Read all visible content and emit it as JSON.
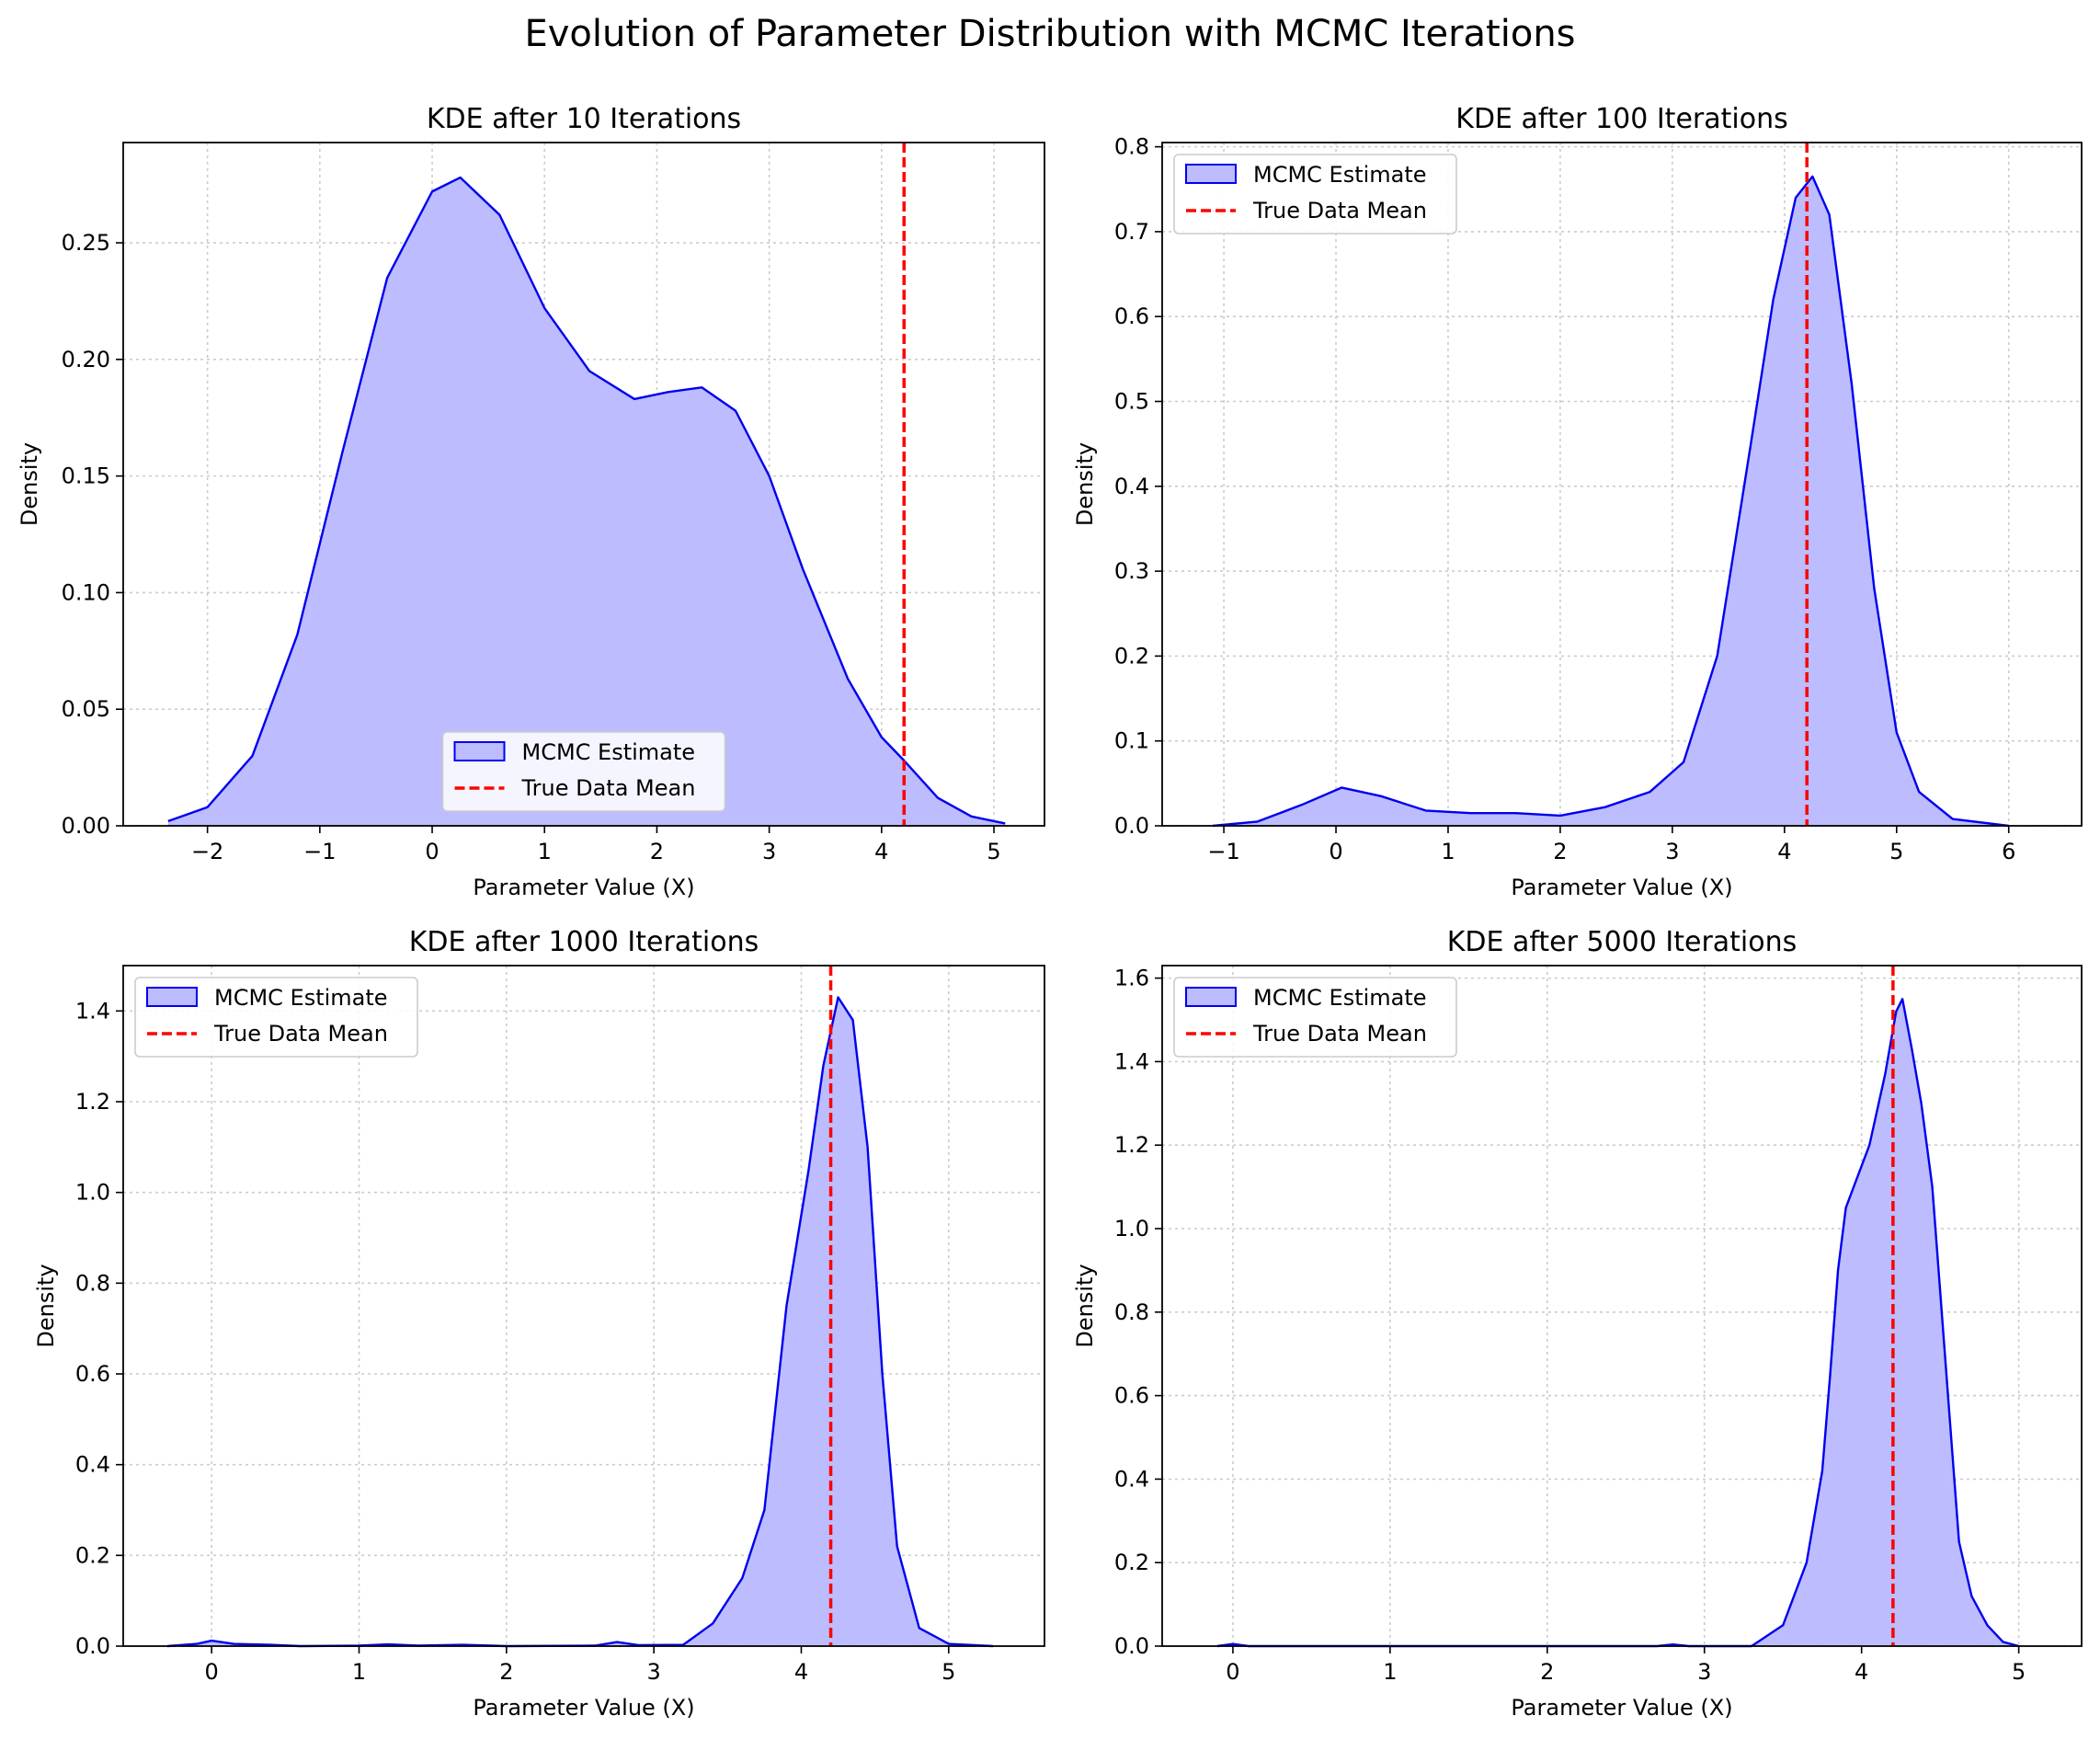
{
  "figure": {
    "title": "Evolution of Parameter Distribution with MCMC Iterations"
  },
  "colors": {
    "fill": "#bcbcff",
    "line": "#0000ee",
    "mean_line": "#ff0000",
    "grid": "#cccccc"
  },
  "chart_data": [
    {
      "type": "area",
      "title": "KDE after 10 Iterations",
      "xlabel": "Parameter Value (X)",
      "ylabel": "Density",
      "xlim": [
        -2.75,
        5.45
      ],
      "ylim": [
        0,
        0.293
      ],
      "xticks": [
        -2,
        -1,
        0,
        1,
        2,
        3,
        4,
        5
      ],
      "xtick_labels": [
        "−2",
        "−1",
        "0",
        "1",
        "2",
        "3",
        "4",
        "5"
      ],
      "yticks": [
        0,
        0.05,
        0.1,
        0.15,
        0.2,
        0.25
      ],
      "ytick_labels": [
        "0.00",
        "0.05",
        "0.10",
        "0.15",
        "0.20",
        "0.25"
      ],
      "grid": true,
      "legend": "lower center",
      "true_mean": 4.2,
      "series": [
        {
          "name": "MCMC Estimate",
          "x": [
            -2.35,
            -2.0,
            -1.6,
            -1.2,
            -0.8,
            -0.4,
            0.0,
            0.25,
            0.6,
            1.0,
            1.4,
            1.8,
            2.1,
            2.4,
            2.7,
            3.0,
            3.3,
            3.7,
            4.0,
            4.2,
            4.5,
            4.8,
            5.1
          ],
          "y": [
            0.002,
            0.008,
            0.03,
            0.082,
            0.16,
            0.235,
            0.272,
            0.278,
            0.262,
            0.222,
            0.195,
            0.183,
            0.186,
            0.188,
            0.178,
            0.15,
            0.11,
            0.063,
            0.038,
            0.028,
            0.012,
            0.004,
            0.001
          ]
        }
      ]
    },
    {
      "type": "area",
      "title": "KDE after 100 Iterations",
      "xlabel": "Parameter Value (X)",
      "ylabel": "Density",
      "xlim": [
        -1.55,
        6.65
      ],
      "ylim": [
        0,
        0.805
      ],
      "xticks": [
        -1,
        0,
        1,
        2,
        3,
        4,
        5,
        6
      ],
      "xtick_labels": [
        "−1",
        "0",
        "1",
        "2",
        "3",
        "4",
        "5",
        "6"
      ],
      "yticks": [
        0,
        0.1,
        0.2,
        0.3,
        0.4,
        0.5,
        0.6,
        0.7,
        0.8
      ],
      "ytick_labels": [
        "0.0",
        "0.1",
        "0.2",
        "0.3",
        "0.4",
        "0.5",
        "0.6",
        "0.7",
        "0.8"
      ],
      "grid": true,
      "legend": "upper left",
      "true_mean": 4.2,
      "series": [
        {
          "name": "MCMC Estimate",
          "x": [
            -1.1,
            -0.7,
            -0.3,
            0.05,
            0.4,
            0.8,
            1.2,
            1.6,
            2.0,
            2.4,
            2.8,
            3.1,
            3.4,
            3.7,
            3.9,
            4.1,
            4.25,
            4.4,
            4.6,
            4.8,
            5.0,
            5.2,
            5.5,
            6.0
          ],
          "y": [
            0.0,
            0.005,
            0.025,
            0.045,
            0.035,
            0.018,
            0.015,
            0.015,
            0.012,
            0.022,
            0.04,
            0.075,
            0.2,
            0.45,
            0.62,
            0.74,
            0.765,
            0.72,
            0.52,
            0.28,
            0.11,
            0.04,
            0.008,
            0.0
          ]
        }
      ]
    },
    {
      "type": "area",
      "title": "KDE after 1000 Iterations",
      "xlabel": "Parameter Value (X)",
      "ylabel": "Density",
      "xlim": [
        -0.6,
        5.65
      ],
      "ylim": [
        0,
        1.5
      ],
      "xticks": [
        0,
        1,
        2,
        3,
        4,
        5
      ],
      "xtick_labels": [
        "0",
        "1",
        "2",
        "3",
        "4",
        "5"
      ],
      "yticks": [
        0,
        0.2,
        0.4,
        0.6,
        0.8,
        1.0,
        1.2,
        1.4
      ],
      "ytick_labels": [
        "0.0",
        "0.2",
        "0.4",
        "0.6",
        "0.8",
        "1.0",
        "1.2",
        "1.4"
      ],
      "grid": true,
      "legend": "upper left",
      "true_mean": 4.2,
      "series": [
        {
          "name": "MCMC Estimate",
          "x": [
            -0.3,
            -0.1,
            0.0,
            0.15,
            0.4,
            0.6,
            1.0,
            1.2,
            1.4,
            1.7,
            2.0,
            2.6,
            2.75,
            2.9,
            3.2,
            3.4,
            3.6,
            3.75,
            3.9,
            4.05,
            4.15,
            4.25,
            4.35,
            4.45,
            4.55,
            4.65,
            4.8,
            5.0,
            5.3
          ],
          "y": [
            0.0,
            0.005,
            0.012,
            0.005,
            0.003,
            0.0,
            0.001,
            0.004,
            0.001,
            0.003,
            0.0,
            0.001,
            0.009,
            0.002,
            0.003,
            0.05,
            0.15,
            0.3,
            0.75,
            1.05,
            1.28,
            1.43,
            1.38,
            1.1,
            0.6,
            0.22,
            0.04,
            0.005,
            0.0
          ]
        }
      ]
    },
    {
      "type": "area",
      "title": "KDE after 5000 Iterations",
      "xlabel": "Parameter Value (X)",
      "ylabel": "Density",
      "xlim": [
        -0.45,
        5.4
      ],
      "ylim": [
        0,
        1.63
      ],
      "xticks": [
        0,
        1,
        2,
        3,
        4,
        5
      ],
      "xtick_labels": [
        "0",
        "1",
        "2",
        "3",
        "4",
        "5"
      ],
      "yticks": [
        0,
        0.2,
        0.4,
        0.6,
        0.8,
        1.0,
        1.2,
        1.4,
        1.6
      ],
      "ytick_labels": [
        "0.0",
        "0.2",
        "0.4",
        "0.6",
        "0.8",
        "1.0",
        "1.2",
        "1.4",
        "1.6"
      ],
      "grid": true,
      "legend": "upper left",
      "true_mean": 4.2,
      "series": [
        {
          "name": "MCMC Estimate",
          "x": [
            -0.1,
            0.0,
            0.1,
            0.5,
            1.0,
            2.0,
            2.7,
            2.8,
            2.9,
            3.3,
            3.5,
            3.65,
            3.75,
            3.8,
            3.85,
            3.9,
            3.95,
            4.05,
            4.15,
            4.22,
            4.26,
            4.32,
            4.38,
            4.45,
            4.55,
            4.62,
            4.7,
            4.8,
            4.9,
            5.0
          ],
          "y": [
            0.0,
            0.005,
            0.0,
            0.0,
            0.0,
            0.0,
            0.0,
            0.004,
            0.0,
            0.0,
            0.05,
            0.2,
            0.42,
            0.65,
            0.9,
            1.05,
            1.1,
            1.2,
            1.37,
            1.52,
            1.55,
            1.43,
            1.3,
            1.1,
            0.6,
            0.25,
            0.12,
            0.05,
            0.01,
            0.0
          ]
        }
      ]
    }
  ],
  "legend": {
    "estimate_label": "MCMC Estimate",
    "mean_label": "True Data Mean"
  }
}
